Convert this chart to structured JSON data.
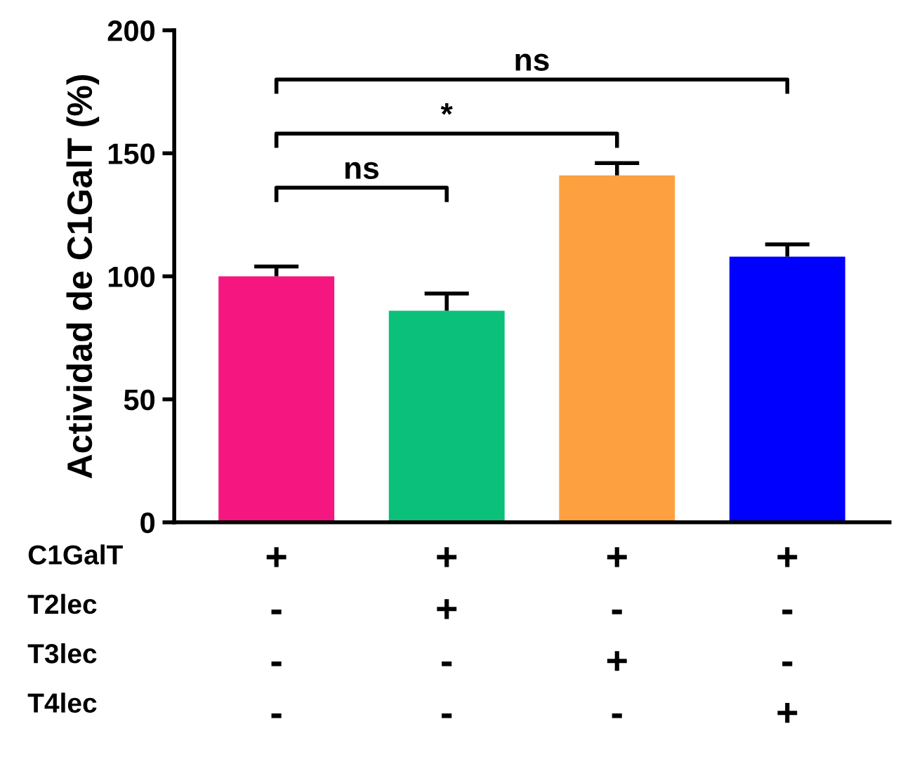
{
  "chart_data": {
    "type": "bar",
    "ylabel": "Actividad de C1GalT (%)",
    "categories": [
      "+\n-\n-\n-",
      "+\n+\n-\n-",
      "+\n-\n+\n-",
      "+\n-\n-\n+"
    ],
    "values": [
      100,
      86,
      141,
      108
    ],
    "colors": [
      "#f5177f",
      "#0bc07a",
      "#fca040",
      "#0000ff"
    ],
    "errors": [
      [
        100,
        104
      ],
      [
        86,
        93
      ],
      [
        141,
        146
      ],
      [
        108,
        113
      ]
    ],
    "ylim": [
      0,
      200
    ],
    "yticks": [
      0,
      50,
      100,
      150,
      200
    ],
    "grid": false,
    "legend": false,
    "annotations": [
      "ns",
      "*",
      "ns",
      "C1GalT",
      "T2lec",
      "T3lec",
      "T4lec"
    ]
  }
}
